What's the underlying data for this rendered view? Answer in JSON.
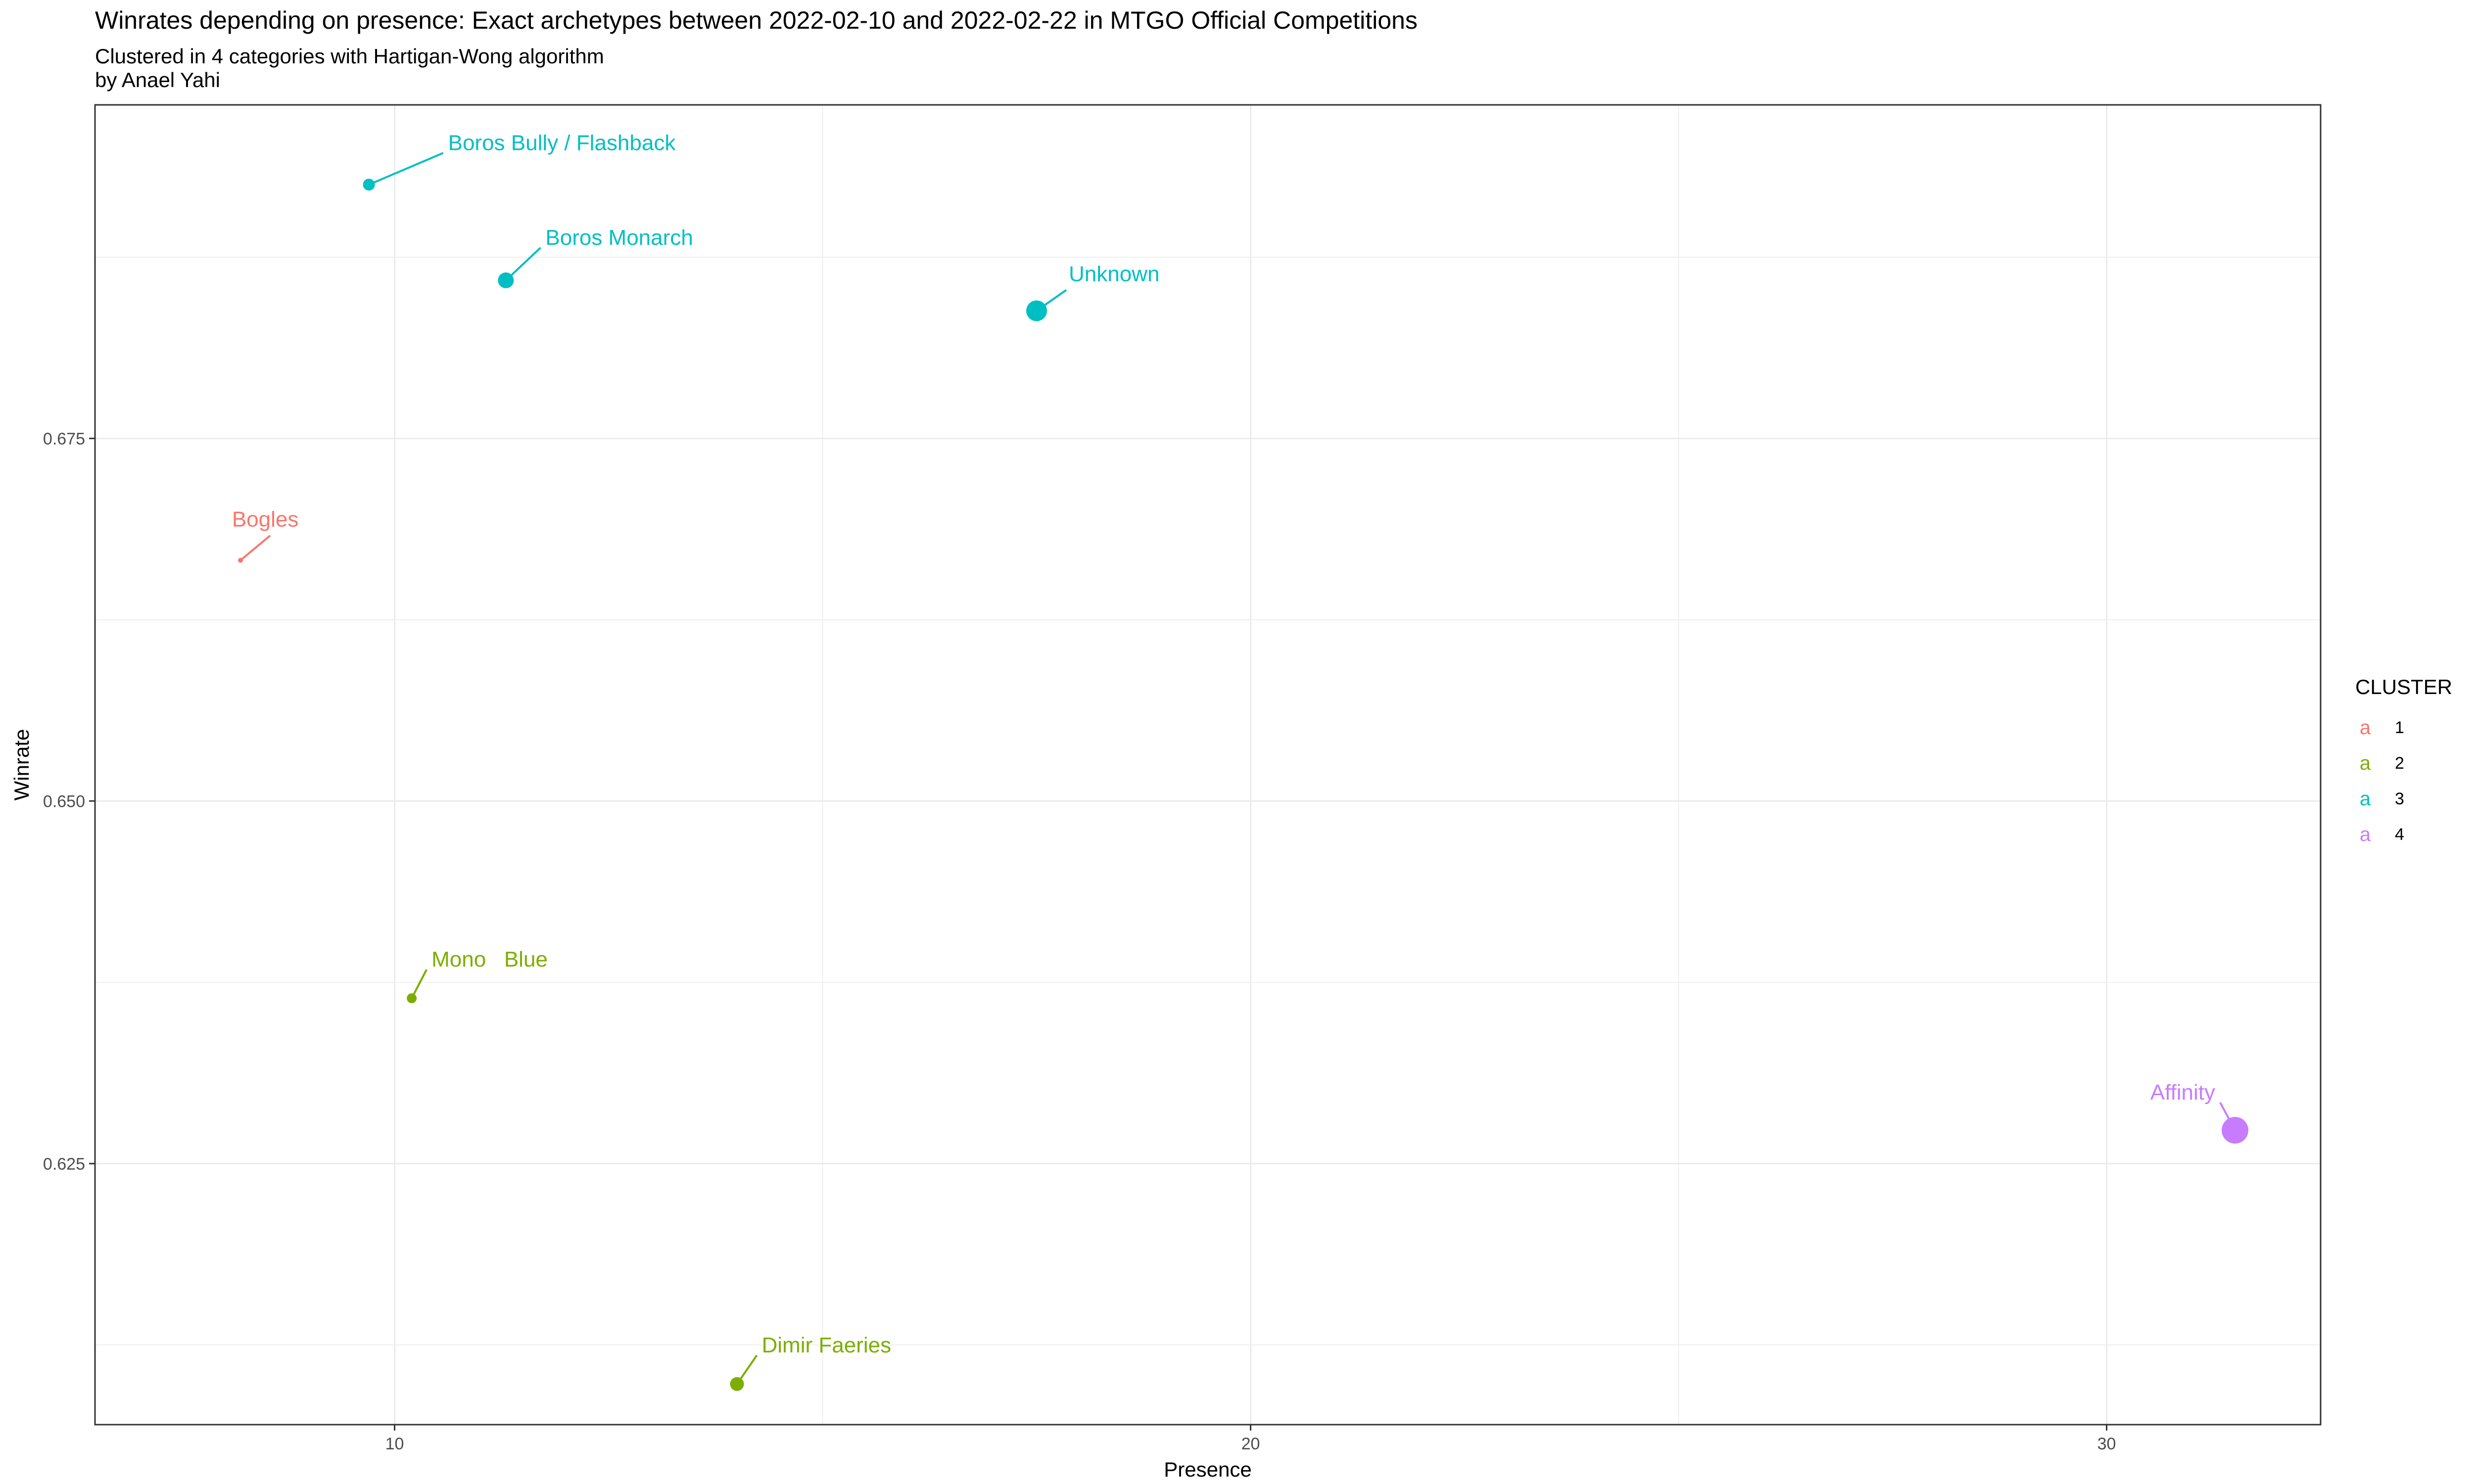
{
  "title": "Winrates depending on presence: Exact archetypes  between 2022-02-10 and 2022-02-22 in MTGO Official Competitions",
  "subtitle_line1": "Clustered in 4 categories with Hartigan-Wong algorithm",
  "subtitle_line2": "by Anael Yahi",
  "legend": {
    "title": "CLUSTER",
    "key_glyph": "a",
    "items": [
      {
        "label": "1",
        "color": "#F8766D"
      },
      {
        "label": "2",
        "color": "#7CAE00"
      },
      {
        "label": "3",
        "color": "#00BFC4"
      },
      {
        "label": "4",
        "color": "#C77CFF"
      }
    ]
  },
  "chart_data": {
    "type": "scatter",
    "xlabel": "Presence",
    "ylabel": "Winrate",
    "xlim": [
      6.5,
      32.5
    ],
    "ylim": [
      0.607,
      0.698
    ],
    "xticks": [
      10,
      20,
      30
    ],
    "yticks": [
      0.625,
      0.65,
      0.675
    ],
    "ytick_labels": [
      "0.625",
      "0.650",
      "0.675"
    ],
    "grid": true,
    "legend_position": "right",
    "points": [
      {
        "label": "Boros Bully / Flashback",
        "x": 9.7,
        "y": 0.6925,
        "cluster": 3
      },
      {
        "label": "Boros Monarch",
        "x": 11.3,
        "y": 0.6859,
        "cluster": 3
      },
      {
        "label": "Unknown",
        "x": 17.5,
        "y": 0.6838,
        "cluster": 3
      },
      {
        "label": "Bogles",
        "x": 8.2,
        "y": 0.6666,
        "cluster": 1
      },
      {
        "label": "Mono   Blue",
        "x": 10.2,
        "y": 0.6364,
        "cluster": 2
      },
      {
        "label": "Dimir Faeries",
        "x": 14.0,
        "y": 0.6098,
        "cluster": 2
      },
      {
        "label": "Affinity",
        "x": 31.5,
        "y": 0.6273,
        "cluster": 4
      }
    ]
  }
}
